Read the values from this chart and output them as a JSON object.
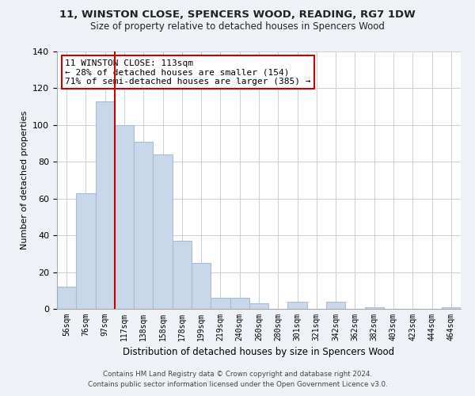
{
  "title": "11, WINSTON CLOSE, SPENCERS WOOD, READING, RG7 1DW",
  "subtitle": "Size of property relative to detached houses in Spencers Wood",
  "xlabel": "Distribution of detached houses by size in Spencers Wood",
  "ylabel": "Number of detached properties",
  "bar_color": "#c8d8ea",
  "bar_edge_color": "#a8bece",
  "bin_labels": [
    "56sqm",
    "76sqm",
    "97sqm",
    "117sqm",
    "138sqm",
    "158sqm",
    "178sqm",
    "199sqm",
    "219sqm",
    "240sqm",
    "260sqm",
    "280sqm",
    "301sqm",
    "321sqm",
    "342sqm",
    "362sqm",
    "382sqm",
    "403sqm",
    "423sqm",
    "444sqm",
    "464sqm"
  ],
  "bar_heights": [
    12,
    63,
    113,
    100,
    91,
    84,
    37,
    25,
    6,
    6,
    3,
    0,
    4,
    0,
    4,
    0,
    1,
    0,
    0,
    0,
    1
  ],
  "vline_x": 3,
  "vline_color": "#cc0000",
  "ylim": [
    0,
    140
  ],
  "yticks": [
    0,
    20,
    40,
    60,
    80,
    100,
    120,
    140
  ],
  "annotation_text": "11 WINSTON CLOSE: 113sqm\n← 28% of detached houses are smaller (154)\n71% of semi-detached houses are larger (385) →",
  "annotation_box_color": "#ffffff",
  "annotation_box_edge": "#cc0000",
  "footer_line1": "Contains HM Land Registry data © Crown copyright and database right 2024.",
  "footer_line2": "Contains public sector information licensed under the Open Government Licence v3.0.",
  "background_color": "#eef2f7",
  "plot_bg_color": "#ffffff",
  "grid_color": "#c8d0da"
}
